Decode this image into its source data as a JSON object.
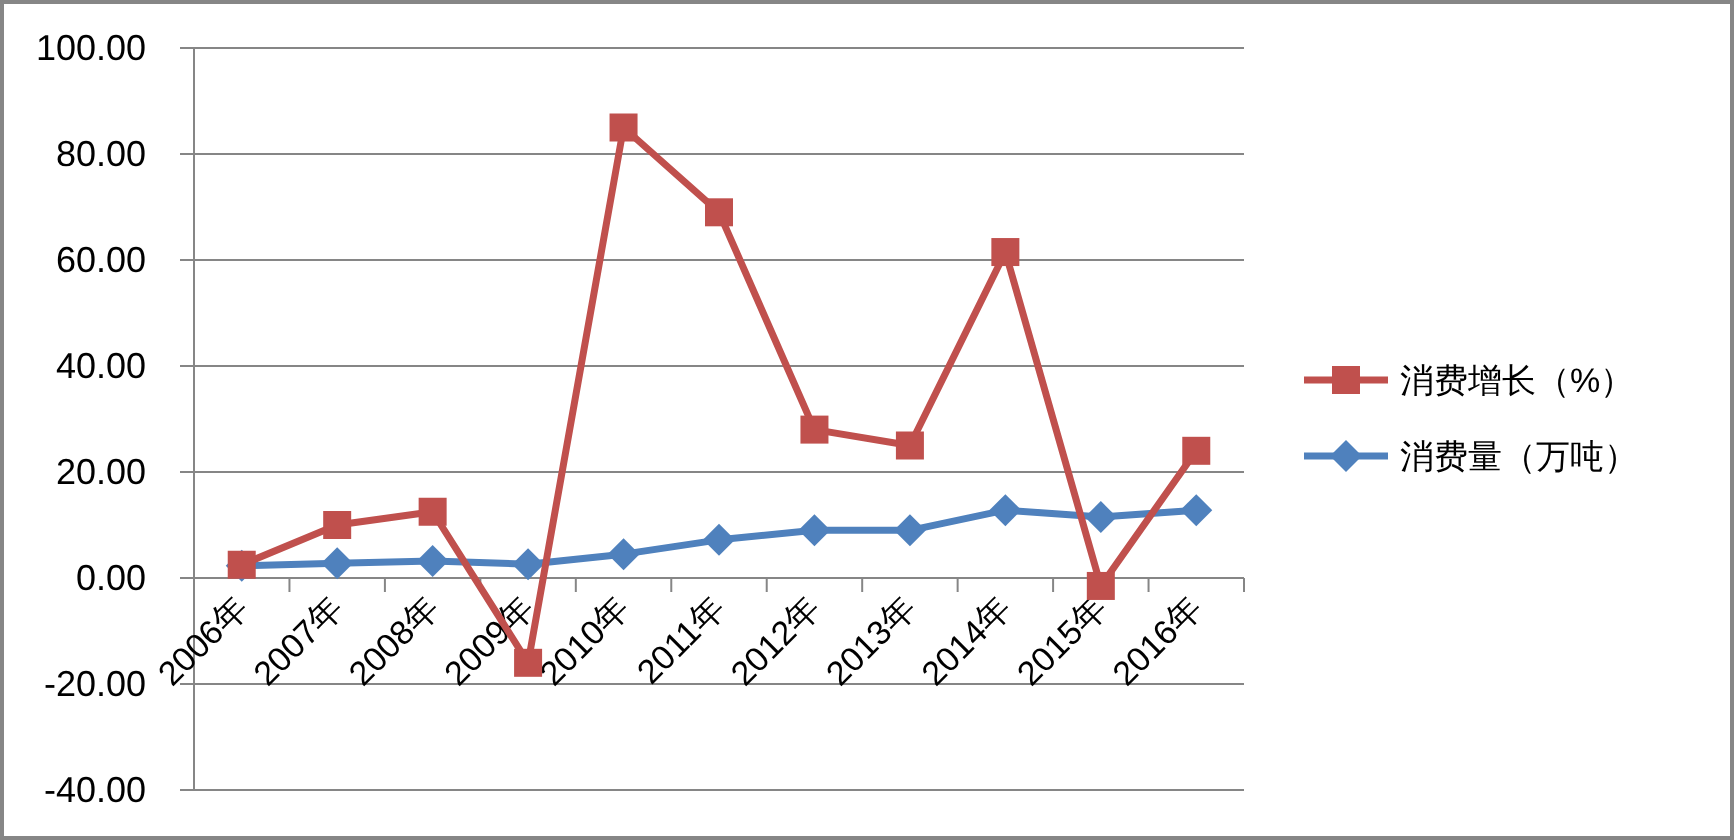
{
  "chart_data": {
    "type": "line",
    "categories": [
      "2006年",
      "2007年",
      "2008年",
      "2009年",
      "2010年",
      "2011年",
      "2012年",
      "2013年",
      "2014年",
      "2015年",
      "2016年"
    ],
    "series": [
      {
        "name": "消费增长（%）",
        "color": "#c0504d",
        "marker": "square",
        "values": [
          2.5,
          10,
          12.5,
          -16,
          85,
          69,
          28,
          25,
          61.5,
          -1.5,
          24
        ]
      },
      {
        "name": "消费量（万吨）",
        "color": "#4f81bd",
        "marker": "diamond",
        "values": [
          2.3,
          2.8,
          3.2,
          2.6,
          4.5,
          7.2,
          9,
          9,
          12.8,
          11.5,
          12.8
        ]
      }
    ],
    "ylim": [
      -40,
      100
    ],
    "yticks": [
      {
        "value": -40,
        "label": "-40.00"
      },
      {
        "value": -20,
        "label": "-20.00"
      },
      {
        "value": 0,
        "label": "0.00"
      },
      {
        "value": 20,
        "label": "20.00"
      },
      {
        "value": 40,
        "label": "40.00"
      },
      {
        "value": 60,
        "label": "60.00"
      },
      {
        "value": 80,
        "label": "80.00"
      },
      {
        "value": 100,
        "label": "100.00"
      }
    ],
    "grid": "y",
    "legend": "right"
  }
}
